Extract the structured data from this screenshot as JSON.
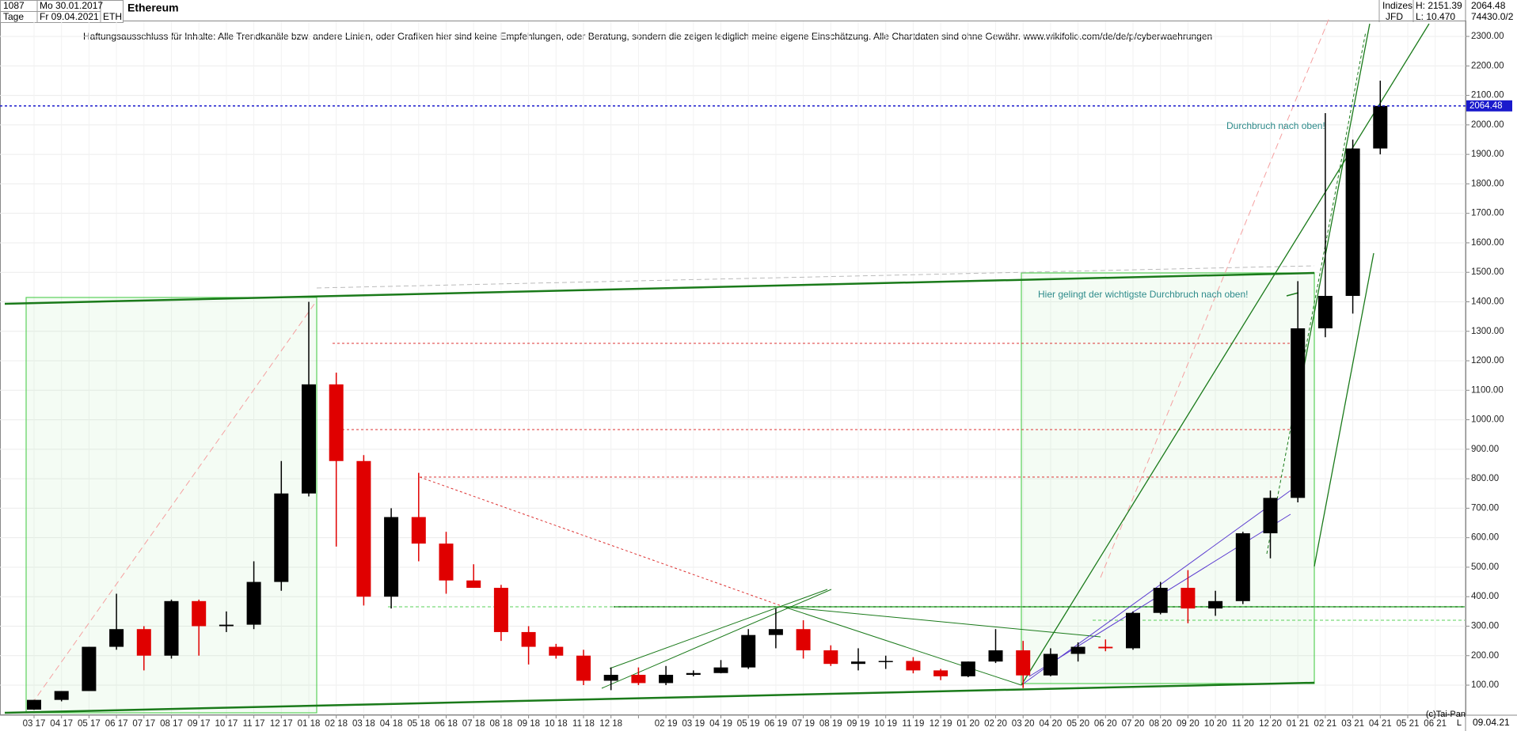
{
  "header": {
    "count": "1087",
    "start": "Mo 30.01.2017",
    "period": "Tage",
    "end": "Fr 09.04.2021",
    "symbol": "ETH",
    "source_group": "Indizes",
    "source": "JFD",
    "high": "H: 2151.39",
    "low": "L: 10.470",
    "last": "2064.48",
    "volume": "74430.0/2",
    "disclaimer": "Haftungsausschluss für Inhalte: Alle Trendkanäle bzw. andere Linien, oder Grafiken hier sind keine Empfehlungen, oder Beratung, sondern die zeigen lediglich meine eigene Einschätzung. Alle Chartdaten sind ohne Gewähr.  www.wikifolio.com/de/de/p/cyberwaehrungen"
  },
  "footer": {
    "copyright": "(c)Tai-Pan",
    "date": "09.04.21",
    "scale": "L"
  },
  "chart_data": {
    "type": "candlestick",
    "title": "Ethereum",
    "categories": [
      "03 17",
      "04 17",
      "05 17",
      "06 17",
      "07 17",
      "08 17",
      "09 17",
      "10 17",
      "11 17",
      "12 17",
      "01 18",
      "02 18",
      "03 18",
      "04 18",
      "05 18",
      "06 18",
      "07 18",
      "08 18",
      "09 18",
      "10 18",
      "11 18",
      "12 18",
      null,
      "02 19",
      "03 19",
      "04 19",
      "05 19",
      "06 19",
      "07 19",
      "08 19",
      "09 19",
      "10 19",
      "11 19",
      "12 19",
      "01 20",
      "02 20",
      "03 20",
      "04 20",
      "05 20",
      "06 20",
      "07 20",
      "08 20",
      "09 20",
      "10 20",
      "11 20",
      "12 20",
      "01 21",
      "02 21",
      "03 21",
      "04 21",
      "05 21",
      "06 21"
    ],
    "open": [
      17,
      50,
      80,
      230,
      290,
      200,
      385,
      300,
      305,
      450,
      750,
      1120,
      860,
      400,
      670,
      580,
      455,
      430,
      280,
      230,
      200,
      115,
      135,
      107,
      135,
      141,
      160,
      270,
      290,
      218,
      172,
      180,
      182,
      150,
      130,
      180,
      218,
      133,
      206,
      230,
      225,
      345,
      430,
      360,
      385,
      615,
      735,
      1310,
      1420,
      1920,
      null,
      null
    ],
    "high": [
      50,
      80,
      230,
      410,
      300,
      390,
      390,
      350,
      520,
      860,
      1400,
      1160,
      880,
      700,
      820,
      620,
      510,
      440,
      300,
      240,
      220,
      160,
      160,
      165,
      150,
      185,
      290,
      360,
      320,
      235,
      225,
      200,
      195,
      155,
      180,
      290,
      250,
      225,
      245,
      255,
      350,
      450,
      490,
      420,
      620,
      760,
      1470,
      2040,
      1950,
      2150,
      null,
      null
    ],
    "low": [
      16,
      45,
      80,
      220,
      150,
      190,
      200,
      280,
      290,
      420,
      740,
      570,
      370,
      360,
      520,
      410,
      430,
      250,
      170,
      190,
      100,
      83,
      100,
      100,
      130,
      140,
      155,
      225,
      190,
      165,
      150,
      155,
      140,
      117,
      127,
      175,
      90,
      130,
      180,
      215,
      220,
      340,
      310,
      335,
      375,
      530,
      720,
      1280,
      1360,
      1900,
      null,
      null
    ],
    "close": [
      50,
      80,
      230,
      290,
      200,
      385,
      300,
      305,
      450,
      750,
      1120,
      860,
      400,
      670,
      580,
      455,
      430,
      280,
      230,
      200,
      115,
      135,
      107,
      135,
      141,
      160,
      270,
      290,
      218,
      172,
      180,
      182,
      150,
      130,
      180,
      218,
      133,
      206,
      230,
      225,
      345,
      430,
      360,
      385,
      615,
      735,
      1310,
      1420,
      1920,
      2064.48,
      null,
      null
    ],
    "up_color": "#000000",
    "down_color": "#e00000",
    "last_price": 2064.48,
    "last_price_label": "2064.48",
    "last_price_color": "#1a1acc",
    "ylim": [
      0,
      2350
    ],
    "yticks": [
      {
        "value": 100,
        "label": "100.00"
      },
      {
        "value": 200,
        "label": "200.00"
      },
      {
        "value": 300,
        "label": "300.00"
      },
      {
        "value": 400,
        "label": "400.00"
      },
      {
        "value": 500,
        "label": "500.00"
      },
      {
        "value": 600,
        "label": "600.00"
      },
      {
        "value": 700,
        "label": "700.00"
      },
      {
        "value": 800,
        "label": "800.00"
      },
      {
        "value": 900,
        "label": "900.00"
      },
      {
        "value": 1000,
        "label": "1000.00"
      },
      {
        "value": 1100,
        "label": "1100.00"
      },
      {
        "value": 1200,
        "label": "1200.00"
      },
      {
        "value": 1300,
        "label": "1300.00"
      },
      {
        "value": 1400,
        "label": "1400.00"
      },
      {
        "value": 1500,
        "label": "1500.00"
      },
      {
        "value": 1600,
        "label": "1600.00"
      },
      {
        "value": 1700,
        "label": "1700.00"
      },
      {
        "value": 1800,
        "label": "1800.00"
      },
      {
        "value": 1900,
        "label": "1900.00"
      },
      {
        "value": 2000,
        "label": "2000.00"
      },
      {
        "value": 2100,
        "label": "2100.00"
      },
      {
        "value": 2200,
        "label": "2200.00"
      },
      {
        "value": 2300,
        "label": "2300.00"
      }
    ],
    "grid": true,
    "annotations": [
      "Durchbruch nach oben!",
      "Hier gelingt der wichtigste Durchbruch nach oben!"
    ]
  }
}
